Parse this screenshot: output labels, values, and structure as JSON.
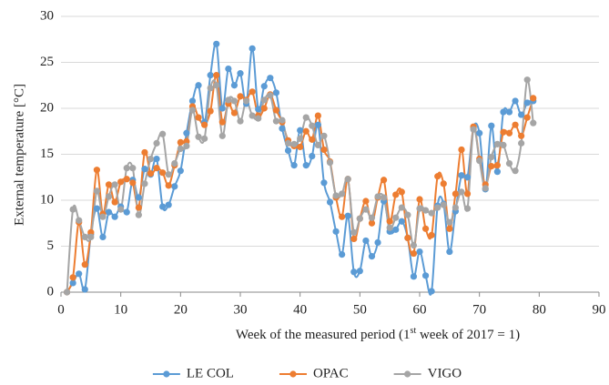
{
  "chart_data": {
    "type": "line",
    "x_label": [
      "Week of the measured period (1",
      "st",
      " week of 2017 = 1)"
    ],
    "y_label": "External temperature [°C]",
    "x": [
      1,
      2,
      3,
      4,
      5,
      6,
      7,
      8,
      9,
      10,
      11,
      12,
      13,
      14,
      15,
      16,
      17,
      18,
      19,
      20,
      21,
      22,
      23,
      24,
      25,
      26,
      27,
      28,
      29,
      30,
      31,
      32,
      33,
      34,
      35,
      36,
      37,
      38,
      39,
      40,
      41,
      42,
      43,
      44,
      45,
      46,
      47,
      48,
      49,
      50,
      51,
      52,
      53,
      54,
      55,
      56,
      57,
      58,
      59,
      60,
      61,
      62,
      63,
      64,
      65,
      66,
      67,
      68,
      69,
      70,
      71,
      72,
      73,
      74,
      75,
      76,
      77,
      78,
      79
    ],
    "series": [
      {
        "name": "LE COL",
        "color": "#5b9bd5",
        "values": [
          0,
          1,
          2,
          0.3,
          6.3,
          9.1,
          6,
          8.7,
          8.2,
          9.3,
          8.7,
          12.2,
          10.3,
          13.4,
          12.8,
          14.5,
          9.3,
          9.5,
          11.5,
          13.2,
          17.3,
          20.8,
          22.5,
          18.5,
          23.6,
          27,
          20,
          24.3,
          22.5,
          23.8,
          20.5,
          26.5,
          19.9,
          22.4,
          23.3,
          21.7,
          17.8,
          15.4,
          13.8,
          17.6,
          13.8,
          14.8,
          18.2,
          11.9,
          9.8,
          6.6,
          4.1,
          8.3,
          2.2,
          2.3,
          5.6,
          3.9,
          5.4,
          9.9,
          6.6,
          6.8,
          7.7,
          5.9,
          1.7,
          4.4,
          1.8,
          0.1,
          9.4,
          9.6,
          4.4,
          8.8,
          12.7,
          12.5,
          17.9,
          17.3,
          11.2,
          18.1,
          13.1,
          19.6,
          19.6,
          20.8,
          19.3,
          20.6,
          20.8
        ]
      },
      {
        "name": "OPAC",
        "color": "#ed7d31",
        "values": [
          0,
          1.6,
          7.6,
          3,
          6.5,
          13.3,
          8.5,
          11.7,
          9.8,
          12,
          12.3,
          11.9,
          9.2,
          15.2,
          12.9,
          13.5,
          13,
          11.6,
          13.8,
          16.3,
          16.4,
          20.2,
          19,
          18.2,
          19.7,
          23.6,
          18.5,
          20.5,
          19.5,
          21.3,
          20.9,
          21.8,
          19.2,
          20,
          21.5,
          19.8,
          18.5,
          16.5,
          15.9,
          15.8,
          17.5,
          16.6,
          19.2,
          15.5,
          14.2,
          10.3,
          8.2,
          12.3,
          5.8,
          8,
          9.9,
          7.5,
          10.3,
          12.2,
          7.7,
          10.6,
          10.9,
          5.9,
          4.2,
          10.1,
          6.9,
          6.2,
          12.6,
          11.8,
          6.9,
          10.7,
          15.5,
          10.7,
          18,
          14.5,
          11.7,
          13.7,
          13.8,
          17.4,
          17.3,
          18.2,
          17,
          19,
          21.1
        ]
      },
      {
        "name": "VIGO",
        "color": "#a5a5a5",
        "values": [
          0,
          9,
          7.8,
          6,
          6,
          11,
          8.2,
          10.4,
          11.7,
          9,
          13.5,
          13.5,
          8.4,
          11.8,
          14.5,
          16.2,
          17.2,
          12.8,
          14,
          15.6,
          15.9,
          19.8,
          16.9,
          16.7,
          22.2,
          22.5,
          17,
          20.9,
          20.8,
          18.6,
          20.8,
          19.2,
          18.9,
          20.9,
          21.4,
          18.6,
          18.7,
          16.2,
          16.1,
          16.7,
          19,
          18.1,
          16,
          17,
          14.1,
          10.5,
          10.7,
          12.3,
          6.5,
          8,
          9,
          8.1,
          10.4,
          10.3,
          7,
          8.1,
          9.2,
          8.4,
          5.1,
          9.1,
          8.9,
          8.6,
          9.2,
          9.5,
          7.6,
          9.2,
          10.9,
          9.1,
          17.7,
          14.3,
          11.3,
          14.7,
          16.1,
          16,
          14,
          13.2,
          16.2,
          23.1,
          18.4
        ]
      }
    ],
    "xlim": [
      0,
      90
    ],
    "xticks": [
      0,
      10,
      20,
      30,
      40,
      50,
      60,
      70,
      80,
      90
    ],
    "ylim": [
      0,
      30
    ],
    "yticks": [
      0,
      5,
      10,
      15,
      20,
      25,
      30
    ],
    "grid": true,
    "legend": "bottom"
  }
}
